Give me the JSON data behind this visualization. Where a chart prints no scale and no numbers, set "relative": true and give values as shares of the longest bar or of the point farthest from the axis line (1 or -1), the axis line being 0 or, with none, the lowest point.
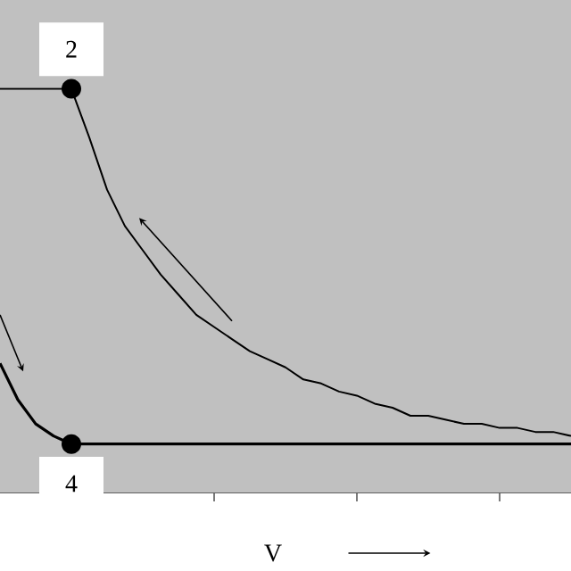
{
  "chart_data": {
    "type": "line",
    "xlabel": "V",
    "relative": true,
    "grid": "y",
    "line_style": "solid",
    "categories": [
      null,
      null,
      null,
      null,
      null,
      null,
      null,
      null,
      null,
      null,
      null,
      null,
      null,
      null,
      null,
      null,
      null,
      null,
      null,
      null,
      null,
      null,
      null,
      null,
      null,
      null,
      null,
      null,
      null,
      null,
      null,
      null,
      null
    ],
    "series": [
      {
        "color": "#000000",
        "values": [
          1.0,
          1.0,
          1.0,
          1.0,
          1.0,
          0.88,
          0.75,
          0.66,
          0.6,
          0.54,
          0.49,
          0.44,
          0.41,
          0.38,
          0.35,
          0.33,
          0.31,
          0.28,
          0.27,
          0.25,
          0.24,
          0.22,
          0.21,
          0.19,
          0.19,
          0.18,
          0.17,
          0.17,
          0.16,
          0.16,
          0.15,
          0.15,
          0.14
        ]
      },
      {
        "color": "#000000",
        "values": [
          0.32,
          0.23,
          0.17,
          0.14,
          0.12,
          0.12,
          0.12,
          0.12,
          0.12,
          0.12,
          0.12,
          0.12,
          0.12,
          0.12,
          0.12,
          0.12,
          0.12,
          0.12,
          0.12,
          0.12,
          0.12,
          0.12,
          0.12,
          0.12,
          0.12,
          0.12,
          0.12,
          0.12,
          0.12,
          0.12,
          0.12,
          0.12,
          0.12
        ]
      }
    ],
    "annotations": [
      {
        "text": "2",
        "y": 1.0
      },
      {
        "text": "4",
        "y": 0.12
      }
    ]
  }
}
